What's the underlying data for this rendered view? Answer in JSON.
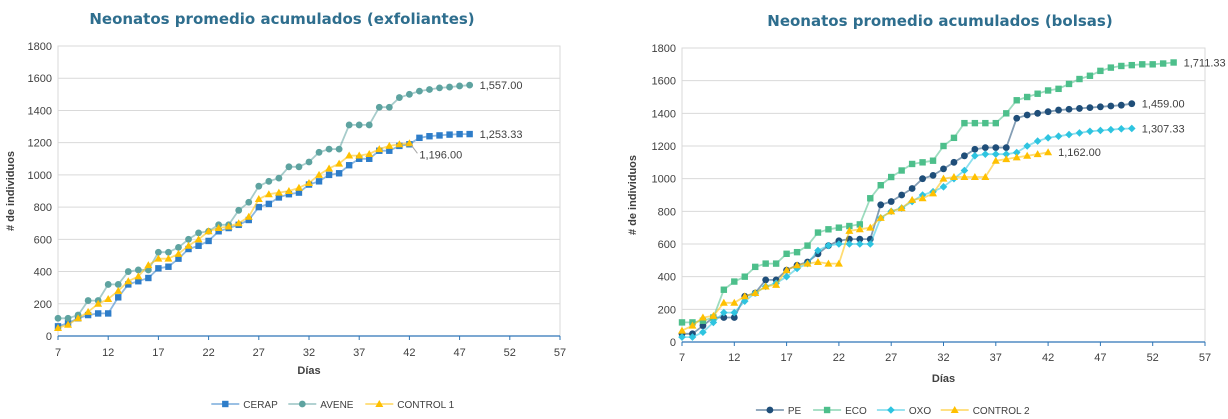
{
  "chart_data": [
    {
      "type": "line",
      "title": "Neonatos promedio acumulados (exfoliantes)",
      "xlabel": "Días",
      "ylabel": "# de individuos",
      "xlim": [
        7,
        57
      ],
      "ylim": [
        0,
        1800
      ],
      "x_ticks": [
        "7",
        "12",
        "17",
        "22",
        "27",
        "32",
        "37",
        "42",
        "47",
        "52",
        "57"
      ],
      "y_ticks": [
        "0",
        "200",
        "400",
        "600",
        "800",
        "1000",
        "1200",
        "1400",
        "1600",
        "1800"
      ],
      "grid": "horizontal",
      "legend_position": "bottom",
      "series": [
        {
          "name": "CERAP",
          "color": "#2e7dc9",
          "marker": "square",
          "x": [
            7,
            8,
            9,
            10,
            11,
            12,
            13,
            14,
            15,
            16,
            17,
            18,
            19,
            20,
            21,
            22,
            23,
            24,
            25,
            26,
            27,
            28,
            29,
            30,
            31,
            32,
            33,
            34,
            35,
            36,
            37,
            38,
            39,
            40,
            41,
            42,
            43,
            44,
            45,
            46,
            47,
            48
          ],
          "y": [
            60,
            80,
            110,
            130,
            140,
            140,
            240,
            320,
            340,
            360,
            420,
            430,
            480,
            540,
            560,
            590,
            650,
            670,
            690,
            720,
            800,
            820,
            860,
            880,
            890,
            940,
            960,
            1000,
            1010,
            1060,
            1100,
            1100,
            1150,
            1150,
            1180,
            1190,
            1230,
            1240,
            1245,
            1250,
            1253,
            1253.33
          ],
          "end_label": "1,253.33"
        },
        {
          "name": "AVENE",
          "color": "#5ea3a0",
          "marker": "circle",
          "x": [
            7,
            8,
            9,
            10,
            11,
            12,
            13,
            14,
            15,
            16,
            17,
            18,
            19,
            20,
            21,
            22,
            23,
            24,
            25,
            26,
            27,
            28,
            29,
            30,
            31,
            32,
            33,
            34,
            35,
            36,
            37,
            38,
            39,
            40,
            41,
            42,
            43,
            44,
            45,
            46,
            47,
            48
          ],
          "y": [
            110,
            110,
            130,
            220,
            220,
            320,
            320,
            400,
            410,
            410,
            520,
            520,
            550,
            600,
            640,
            650,
            690,
            690,
            780,
            830,
            930,
            960,
            980,
            1050,
            1050,
            1080,
            1140,
            1160,
            1160,
            1310,
            1310,
            1310,
            1420,
            1420,
            1480,
            1500,
            1520,
            1530,
            1540,
            1545,
            1552,
            1557
          ],
          "end_label": "1,557.00"
        },
        {
          "name": "CONTROL 1",
          "color": "#ffc000",
          "marker": "triangle",
          "x": [
            7,
            8,
            9,
            10,
            11,
            12,
            13,
            14,
            15,
            16,
            17,
            18,
            19,
            20,
            21,
            22,
            23,
            24,
            25,
            26,
            27,
            28,
            29,
            30,
            31,
            32,
            33,
            34,
            35,
            36,
            37,
            38,
            39,
            40,
            41,
            42
          ],
          "y": [
            50,
            70,
            110,
            150,
            200,
            230,
            280,
            340,
            370,
            440,
            480,
            480,
            510,
            560,
            600,
            650,
            670,
            680,
            700,
            740,
            850,
            880,
            890,
            900,
            920,
            950,
            1000,
            1040,
            1070,
            1120,
            1120,
            1130,
            1160,
            1180,
            1190,
            1196
          ],
          "end_label": "1,196.00"
        }
      ]
    },
    {
      "type": "line",
      "title": "Neonatos promedio acumulados (bolsas)",
      "xlabel": "Días",
      "ylabel": "# de individuos",
      "xlim": [
        7,
        57
      ],
      "ylim": [
        0,
        1800
      ],
      "x_ticks": [
        "7",
        "12",
        "17",
        "22",
        "27",
        "32",
        "37",
        "42",
        "47",
        "52",
        "57"
      ],
      "y_ticks": [
        "0",
        "200",
        "400",
        "600",
        "800",
        "1000",
        "1200",
        "1400",
        "1600",
        "1800"
      ],
      "grid": "horizontal",
      "legend_position": "bottom",
      "series": [
        {
          "name": "PE",
          "color": "#1f4e79",
          "marker": "circle",
          "x": [
            7,
            8,
            9,
            10,
            11,
            12,
            13,
            14,
            15,
            16,
            17,
            18,
            19,
            20,
            21,
            22,
            23,
            24,
            25,
            26,
            27,
            28,
            29,
            30,
            31,
            32,
            33,
            34,
            35,
            36,
            37,
            38,
            39,
            40,
            41,
            42,
            43,
            44,
            45,
            46,
            47,
            48,
            49,
            50
          ],
          "y": [
            50,
            50,
            100,
            150,
            150,
            150,
            280,
            300,
            380,
            380,
            440,
            470,
            490,
            540,
            590,
            620,
            630,
            630,
            630,
            840,
            860,
            900,
            940,
            1000,
            1020,
            1060,
            1100,
            1140,
            1180,
            1190,
            1190,
            1190,
            1370,
            1390,
            1400,
            1410,
            1420,
            1425,
            1430,
            1435,
            1440,
            1445,
            1450,
            1459
          ],
          "end_label": "1,459.00"
        },
        {
          "name": "ECO",
          "color": "#4dbf8b",
          "marker": "square",
          "x": [
            7,
            8,
            9,
            10,
            11,
            12,
            13,
            14,
            15,
            16,
            17,
            18,
            19,
            20,
            21,
            22,
            23,
            24,
            25,
            26,
            27,
            28,
            29,
            30,
            31,
            32,
            33,
            34,
            35,
            36,
            37,
            38,
            39,
            40,
            41,
            42,
            43,
            44,
            45,
            46,
            47,
            48,
            49,
            50,
            51,
            52,
            53,
            54
          ],
          "y": [
            120,
            120,
            130,
            150,
            320,
            370,
            400,
            460,
            480,
            480,
            540,
            550,
            590,
            670,
            690,
            700,
            710,
            720,
            880,
            960,
            1010,
            1050,
            1090,
            1100,
            1110,
            1200,
            1250,
            1340,
            1340,
            1340,
            1340,
            1400,
            1480,
            1500,
            1520,
            1540,
            1550,
            1580,
            1610,
            1630,
            1660,
            1680,
            1690,
            1695,
            1700,
            1700,
            1705,
            1711.33
          ],
          "end_label": "1,711.33"
        },
        {
          "name": "OXO",
          "color": "#2ec4e0",
          "marker": "diamond",
          "x": [
            7,
            8,
            9,
            10,
            11,
            12,
            13,
            14,
            15,
            16,
            17,
            18,
            19,
            20,
            21,
            22,
            23,
            24,
            25,
            26,
            27,
            28,
            29,
            30,
            31,
            32,
            33,
            34,
            35,
            36,
            37,
            38,
            39,
            40,
            41,
            42,
            43,
            44,
            45,
            46,
            47,
            48,
            49,
            50
          ],
          "y": [
            30,
            30,
            60,
            120,
            180,
            180,
            250,
            300,
            340,
            360,
            400,
            450,
            480,
            560,
            590,
            600,
            600,
            600,
            600,
            760,
            800,
            820,
            860,
            900,
            920,
            950,
            1000,
            1050,
            1140,
            1150,
            1150,
            1150,
            1160,
            1200,
            1230,
            1250,
            1260,
            1270,
            1280,
            1290,
            1295,
            1300,
            1305,
            1307.33
          ],
          "end_label": "1,307.33"
        },
        {
          "name": "CONTROL 2",
          "color": "#ffc000",
          "marker": "triangle",
          "x": [
            7,
            8,
            9,
            10,
            11,
            12,
            13,
            14,
            15,
            16,
            17,
            18,
            19,
            20,
            21,
            22,
            23,
            24,
            25,
            26,
            27,
            28,
            29,
            30,
            31,
            32,
            33,
            34,
            35,
            36,
            37,
            38,
            39,
            40,
            41,
            42
          ],
          "y": [
            70,
            100,
            150,
            160,
            240,
            240,
            280,
            300,
            340,
            350,
            440,
            470,
            480,
            490,
            480,
            480,
            680,
            690,
            700,
            760,
            800,
            820,
            870,
            880,
            910,
            1000,
            1010,
            1010,
            1010,
            1010,
            1110,
            1120,
            1130,
            1140,
            1150,
            1162
          ],
          "end_label": "1,162.00"
        }
      ]
    }
  ]
}
